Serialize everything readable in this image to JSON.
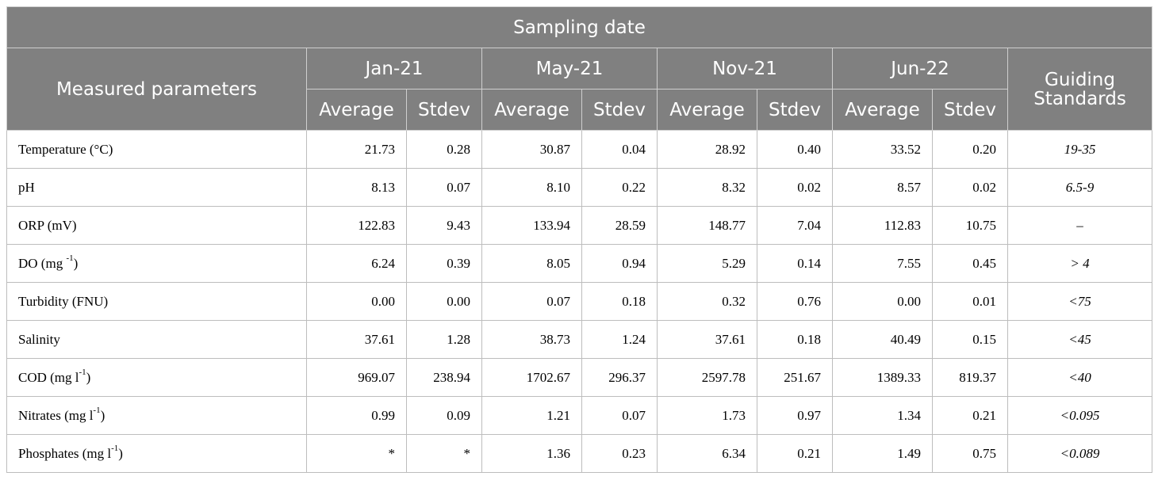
{
  "header": {
    "sampling_date": "Sampling date",
    "measured_parameters": "Measured parameters",
    "guiding_standards_line1": "Guiding",
    "guiding_standards_line2": "Standards",
    "dates": [
      "Jan-21",
      "May-21",
      "Nov-21",
      "Jun-22"
    ],
    "average": "Average",
    "stdev": "Stdev"
  },
  "rows": [
    {
      "param": "Temperature (°C)",
      "sup": "",
      "suffix": "",
      "values": [
        "21.73",
        "0.28",
        "30.87",
        "0.04",
        "28.92",
        "0.40",
        "33.52",
        "0.20"
      ],
      "standard": "19-35"
    },
    {
      "param": "pH",
      "sup": "",
      "suffix": "",
      "values": [
        "8.13",
        "0.07",
        "8.10",
        "0.22",
        "8.32",
        "0.02",
        "8.57",
        "0.02"
      ],
      "standard": "6.5-9"
    },
    {
      "param": "ORP (mV)",
      "sup": "",
      "suffix": "",
      "values": [
        "122.83",
        "9.43",
        "133.94",
        "28.59",
        "148.77",
        "7.04",
        "112.83",
        "10.75"
      ],
      "standard": "–"
    },
    {
      "param": "DO (mg ",
      "sup": "-1",
      "suffix": ")",
      "values": [
        "6.24",
        "0.39",
        "8.05",
        "0.94",
        "5.29",
        "0.14",
        "7.55",
        "0.45"
      ],
      "standard": "> 4"
    },
    {
      "param": "Turbidity (FNU)",
      "sup": "",
      "suffix": "",
      "values": [
        "0.00",
        "0.00",
        "0.07",
        "0.18",
        "0.32",
        "0.76",
        "0.00",
        "0.01"
      ],
      "standard": "<75"
    },
    {
      "param": "Salinity",
      "sup": "",
      "suffix": "",
      "values": [
        "37.61",
        "1.28",
        "38.73",
        "1.24",
        "37.61",
        "0.18",
        "40.49",
        "0.15"
      ],
      "standard": "<45"
    },
    {
      "param": "COD (mg l",
      "sup": "-1",
      "suffix": ")",
      "values": [
        "969.07",
        "238.94",
        "1702.67",
        "296.37",
        "2597.78",
        "251.67",
        "1389.33",
        "819.37"
      ],
      "standard": "<40"
    },
    {
      "param": "Nitrates (mg l",
      "sup": "-1",
      "suffix": ")",
      "values": [
        "0.99",
        "0.09",
        "1.21",
        "0.07",
        "1.73",
        "0.97",
        "1.34",
        "0.21"
      ],
      "standard": "<0.095"
    },
    {
      "param": "Phosphates (mg l",
      "sup": "-1",
      "suffix": ")",
      "values": [
        "*",
        "*",
        "1.36",
        "0.23",
        "6.34",
        "0.21",
        "1.49",
        "0.75"
      ],
      "standard": "<0.089"
    }
  ]
}
